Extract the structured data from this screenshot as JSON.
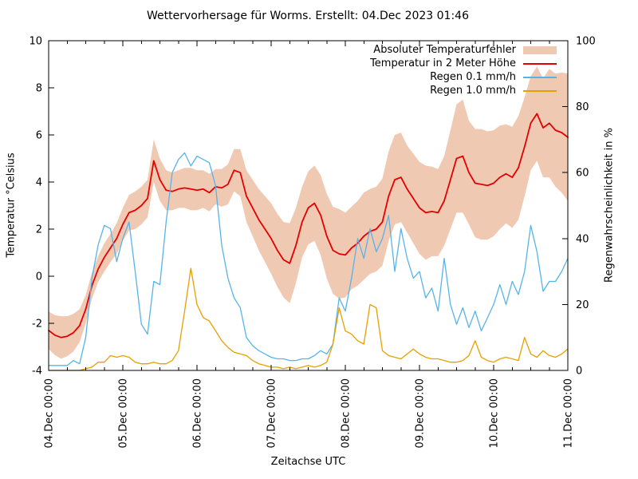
{
  "title": "Wettervorhersage für Worms. Erstellt: 04.Dec 2023 01:46",
  "chart_data": {
    "type": "line",
    "title": "Wettervorhersage für Worms. Erstellt: 04.Dec 2023 01:46",
    "xlabel": "Zeitachse UTC",
    "ylabel_left": "Temperatur °Celsius",
    "ylabel_right": "Regenwahrscheinlichkeit in %",
    "x_tick_labels": [
      "04.Dec 00:00",
      "05.Dec 00:00",
      "06.Dec 00:00",
      "07.Dec 00:00",
      "08.Dec 00:00",
      "09.Dec 00:00",
      "10.Dec 00:00",
      "11.Dec 00:00"
    ],
    "x_range_hours": [
      0,
      168
    ],
    "minor_x_tick_hours": 6,
    "hours_step": 2,
    "y_left_ticks": [
      -4,
      -2,
      0,
      2,
      4,
      6,
      8,
      10
    ],
    "y_left_range": [
      -4,
      10
    ],
    "y_right_ticks": [
      0,
      20,
      40,
      60,
      80,
      100
    ],
    "y_right_range": [
      0,
      100
    ],
    "grid": false,
    "legend_position": "top-right",
    "background": "#ffffff",
    "border_color": "#000000",
    "series": [
      {
        "name": "Absoluter Temperaturfehler",
        "type": "band",
        "axis": "left",
        "color": "#f0c9b3",
        "error": [
          0.8,
          0.85,
          0.9,
          0.85,
          0.8,
          0.7,
          0.6,
          0.55,
          0.55,
          0.6,
          0.6,
          0.65,
          0.7,
          0.75,
          0.8,
          0.8,
          0.8,
          0.9,
          0.9,
          0.85,
          0.8,
          0.8,
          0.85,
          0.9,
          0.85,
          0.8,
          0.8,
          0.75,
          0.8,
          0.85,
          0.9,
          1.0,
          1.1,
          1.2,
          1.3,
          1.4,
          1.5,
          1.55,
          1.6,
          1.7,
          1.6,
          1.5,
          1.55,
          1.6,
          1.7,
          1.8,
          1.85,
          1.9,
          1.8,
          1.75,
          1.8,
          1.85,
          1.8,
          1.8,
          1.85,
          1.9,
          1.9,
          1.9,
          1.85,
          1.9,
          1.95,
          2.0,
          1.9,
          1.85,
          1.9,
          2.1,
          2.3,
          2.4,
          2.2,
          2.3,
          2.35,
          2.3,
          2.25,
          2.2,
          2.1,
          2.15,
          2.2,
          2.1,
          2.0,
          2.0,
          2.1,
          2.3,
          2.4,
          2.55,
          2.7
        ]
      },
      {
        "name": "Temperatur in 2 Meter Höhe",
        "type": "line",
        "axis": "left",
        "color": "#e40000",
        "values": [
          -2.3,
          -2.5,
          -2.6,
          -2.55,
          -2.4,
          -2.1,
          -1.4,
          -0.4,
          0.3,
          0.8,
          1.2,
          1.6,
          2.2,
          2.7,
          2.8,
          3.0,
          3.3,
          4.9,
          4.1,
          3.65,
          3.6,
          3.7,
          3.75,
          3.7,
          3.65,
          3.7,
          3.55,
          3.8,
          3.75,
          3.9,
          4.5,
          4.4,
          3.4,
          2.9,
          2.4,
          2.0,
          1.6,
          1.1,
          0.7,
          0.55,
          1.3,
          2.3,
          2.9,
          3.1,
          2.6,
          1.7,
          1.1,
          0.95,
          0.9,
          1.2,
          1.4,
          1.7,
          1.9,
          2.0,
          2.3,
          3.4,
          4.1,
          4.2,
          3.7,
          3.3,
          2.9,
          2.7,
          2.75,
          2.7,
          3.2,
          4.1,
          5.0,
          5.1,
          4.4,
          3.95,
          3.9,
          3.85,
          3.95,
          4.2,
          4.35,
          4.2,
          4.6,
          5.5,
          6.5,
          6.9,
          6.3,
          6.5,
          6.2,
          6.1,
          5.9
        ]
      },
      {
        "name": "Regen 0.1 mm/h",
        "type": "line",
        "axis": "right",
        "color": "#56b4e9",
        "values": [
          1.5,
          1.5,
          1.5,
          1.5,
          3,
          2,
          10,
          28,
          38,
          44,
          43,
          33,
          40,
          45,
          30,
          14,
          11,
          27,
          26,
          45,
          60,
          64,
          66,
          62,
          65,
          64,
          63,
          56,
          38,
          28,
          22,
          19,
          10,
          7.5,
          6,
          5,
          4,
          3.5,
          3.5,
          3,
          3,
          3.5,
          3.5,
          4.5,
          6,
          5,
          8,
          22,
          18,
          28,
          40,
          34,
          43,
          36,
          40,
          47,
          30,
          43,
          34,
          28,
          30,
          22,
          25,
          18,
          34,
          20,
          14,
          19,
          13,
          18,
          12,
          16,
          20,
          26,
          20,
          27,
          23,
          30,
          44,
          36,
          24,
          27,
          27,
          30,
          34
        ]
      },
      {
        "name": "Regen 1.0 mm/h",
        "type": "line",
        "axis": "right",
        "color": "#e6a000",
        "values": [
          0,
          0,
          0,
          0,
          0,
          0,
          0.5,
          1,
          2.5,
          2.5,
          4.5,
          4,
          4.5,
          4,
          2.5,
          2,
          2,
          2.5,
          2,
          2,
          3,
          6,
          18,
          31,
          20,
          16,
          15,
          12,
          9,
          7,
          5.5,
          5,
          4.5,
          3,
          2,
          1.5,
          1,
          1,
          0.5,
          1,
          0.5,
          1,
          1.5,
          1,
          1.5,
          2.5,
          8,
          19,
          12,
          11,
          9,
          8,
          20,
          19,
          6,
          4.5,
          4,
          3.5,
          5,
          6.5,
          5,
          4,
          3.5,
          3.5,
          3,
          2.5,
          2.5,
          3,
          4.5,
          9,
          4,
          3,
          2.5,
          3.5,
          4,
          3.5,
          3,
          10,
          5,
          4,
          6,
          4.5,
          4,
          5,
          6.5
        ]
      }
    ]
  }
}
